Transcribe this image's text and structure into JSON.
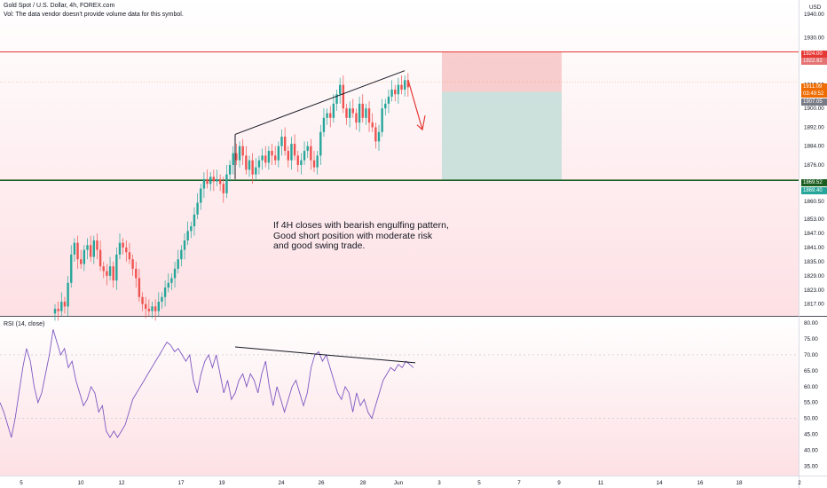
{
  "header": {
    "symbol_line": "Gold Spot / U.S. Dollar, 4h, FOREX.com",
    "vol_line": "Vol: The data vendor doesn't provide volume data for this symbol."
  },
  "currency": "USD",
  "rsi_label": "RSI (14, close)",
  "annotation_lines": [
    "If 4H closes with bearish engulfing pattern,",
    "Good short position with moderate risk",
    "and good swing trade."
  ],
  "price_tags": {
    "stop_top": "1924.00",
    "stop_bottom": "1922.92",
    "last_price": "1911.09",
    "countdown": "03:49:52",
    "entry": "1907.05",
    "target_top": "1869.52",
    "target_bottom": "1869.40"
  },
  "colors": {
    "up": "#26a69a",
    "down": "#ef5350",
    "rsi": "#7e57c2",
    "resistance": "#e53935",
    "support": "#1b5e20",
    "stop_zone": "#f7c6c6",
    "target_zone": "#c7ded9",
    "arrow": "#e53935"
  },
  "chart_data": [
    {
      "type": "candlestick",
      "title": "Gold Spot / U.S. Dollar, 4h, FOREX.com",
      "y_ticks": [
        1940,
        1930,
        1920,
        1910,
        1900,
        1892,
        1884,
        1876,
        1860.5,
        1853,
        1847,
        1841,
        1835,
        1829,
        1823,
        1817
      ],
      "x_ticks": [
        "5",
        "10",
        "12",
        "17",
        "19",
        "24",
        "26",
        "28",
        "Jun",
        "3",
        "5",
        "7",
        "9",
        "11",
        "14",
        "16",
        "18",
        "2"
      ],
      "horizontal_lines": [
        {
          "label": "resistance",
          "value": 1924.0
        },
        {
          "label": "support",
          "value": 1869.52
        }
      ],
      "trendline_from": 1889,
      "trendline_to": 1916,
      "position": {
        "type": "short",
        "entry": 1907.05,
        "stop": 1924.0,
        "target": 1869.52
      },
      "ylim": [
        1812,
        1946
      ],
      "candles_close": [
        1815,
        1814,
        1818,
        1816,
        1826,
        1838,
        1843,
        1836,
        1834,
        1840,
        1842,
        1837,
        1844,
        1840,
        1833,
        1831,
        1829,
        1833,
        1827,
        1838,
        1843,
        1841,
        1839,
        1836,
        1832,
        1828,
        1820,
        1817,
        1815,
        1814,
        1816,
        1814,
        1818,
        1820,
        1824,
        1826,
        1828,
        1832,
        1836,
        1840,
        1844,
        1848,
        1850,
        1855,
        1860,
        1866,
        1870,
        1868,
        1871,
        1869,
        1870,
        1868,
        1864,
        1872,
        1876,
        1881,
        1878,
        1884,
        1880,
        1874,
        1878,
        1872,
        1875,
        1878,
        1880,
        1877,
        1882,
        1880,
        1878,
        1884,
        1888,
        1882,
        1878,
        1885,
        1880,
        1876,
        1878,
        1882,
        1884,
        1878,
        1875,
        1880,
        1890,
        1896,
        1898,
        1896,
        1902,
        1906,
        1910,
        1900,
        1896,
        1900,
        1898,
        1894,
        1902,
        1896,
        1900,
        1894,
        1892,
        1886,
        1890,
        1900,
        1902,
        1905,
        1908,
        1906,
        1910,
        1908,
        1912,
        1909
      ]
    },
    {
      "type": "line",
      "title": "RSI (14, close)",
      "y_ticks": [
        80,
        75,
        70,
        65,
        60,
        55,
        50,
        45,
        40,
        35
      ],
      "ylim": [
        32,
        82
      ],
      "trendline_from": 72.5,
      "trendline_to": 67.5,
      "values": [
        55,
        52,
        48,
        44,
        50,
        58,
        66,
        72,
        68,
        60,
        55,
        58,
        64,
        70,
        78,
        74,
        70,
        72,
        66,
        68,
        62,
        58,
        54,
        56,
        60,
        58,
        52,
        54,
        46,
        44,
        46,
        44,
        46,
        48,
        52,
        56,
        58,
        60,
        62,
        64,
        66,
        68,
        70,
        72,
        74,
        73,
        71,
        72,
        70,
        68,
        70,
        62,
        58,
        64,
        68,
        70,
        66,
        70,
        64,
        58,
        62,
        56,
        58,
        62,
        64,
        60,
        64,
        62,
        58,
        64,
        68,
        60,
        54,
        60,
        56,
        52,
        56,
        60,
        62,
        58,
        54,
        58,
        66,
        70,
        71,
        68,
        70,
        66,
        62,
        58,
        56,
        60,
        58,
        52,
        58,
        54,
        56,
        52,
        50,
        54,
        58,
        62,
        64,
        66,
        65,
        67,
        66,
        68,
        67,
        66
      ]
    }
  ]
}
